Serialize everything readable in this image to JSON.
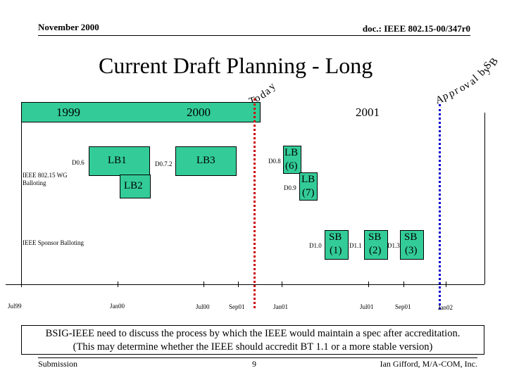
{
  "header": {
    "date": "November 2000",
    "doc_id": "doc.: IEEE 802.15-00/347r0"
  },
  "title": "Current Draft Planning - Long",
  "markers": {
    "today": [
      "T",
      "o",
      "d",
      "a",
      "y"
    ],
    "approval": [
      "A",
      "p",
      "p",
      "r",
      "o",
      "v",
      "a",
      "l",
      " ",
      "b",
      "y",
      " ",
      "S",
      "B"
    ]
  },
  "years": {
    "y1999": "1999",
    "y2000": "2000",
    "y2001": "2001"
  },
  "rows": {
    "wg_label": "IEEE 802.15 WG Balloting",
    "sponsor_label": "IEEE Sponsor Balloting"
  },
  "drafts": {
    "d06": "D0.6",
    "d072": "D0.7.2",
    "d08": "D0.8",
    "d09": "D0.9",
    "d10": "D1.0",
    "d11": "D1.1",
    "d13": "D1.3"
  },
  "ballots": {
    "lb1": "LB1",
    "lb2": "LB2",
    "lb3": "LB3",
    "lb6_a": "LB",
    "lb6_b": "(6)",
    "lb7_a": "LB",
    "lb7_b": "(7)",
    "sb1_a": "SB",
    "sb1_b": "(1)",
    "sb2_a": "SB",
    "sb2_b": "(2)",
    "sb3_a": "SB",
    "sb3_b": "(3)"
  },
  "axis_ticks": [
    "Jul99",
    "Jan00",
    "Jul00",
    "Sep01",
    "Jan01",
    "Jul01",
    "Sep01",
    "Jan02"
  ],
  "note": {
    "line1": "BSIG-IEEE need to discuss the process by which the IEEE would maintain a spec after accreditation.",
    "line2": "(This may determine whether the IEEE should accredit BT 1.1 or a more stable version)"
  },
  "footer": {
    "left": "Submission",
    "page": "9",
    "author": "Ian Gifford, M/A-COM, Inc."
  },
  "colors": {
    "bar_green": "#33cc99",
    "today_line": "#cc0000",
    "approval_line": "#0000cc"
  }
}
